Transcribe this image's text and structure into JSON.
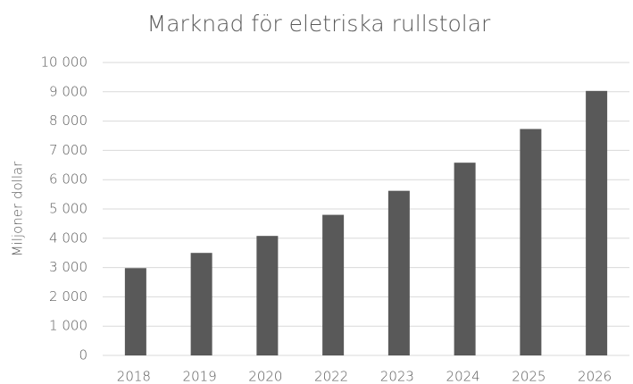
{
  "chart_data": {
    "type": "bar",
    "title": "Marknad för eletriska rullstolar",
    "y_label": "Miljoner dollar",
    "categories": [
      "2018",
      "2019",
      "2020",
      "2022",
      "2023",
      "2024",
      "2025",
      "2026"
    ],
    "values": [
      2980,
      3500,
      4080,
      4800,
      5620,
      6580,
      7730,
      9030
    ],
    "color": "#595959",
    "ylim": [
      0,
      10000
    ],
    "yticks": [
      0,
      {
        "value": 1000,
        "label": "1 000"
      },
      {
        "value": 2000,
        "label": "2 000"
      },
      {
        "value": 3000,
        "label": "3 000"
      },
      {
        "value": 4000,
        "label": "4 000"
      },
      {
        "value": 5000,
        "label": "5 000"
      },
      {
        "value": 6000,
        "label": "6 000"
      },
      {
        "value": 7000,
        "label": "7 000"
      },
      {
        "value": 8000,
        "label": "8 000"
      },
      {
        "value": 9000,
        "label": "9 000"
      },
      {
        "value": 10000,
        "label": "10 000"
      }
    ],
    "grid": true
  }
}
